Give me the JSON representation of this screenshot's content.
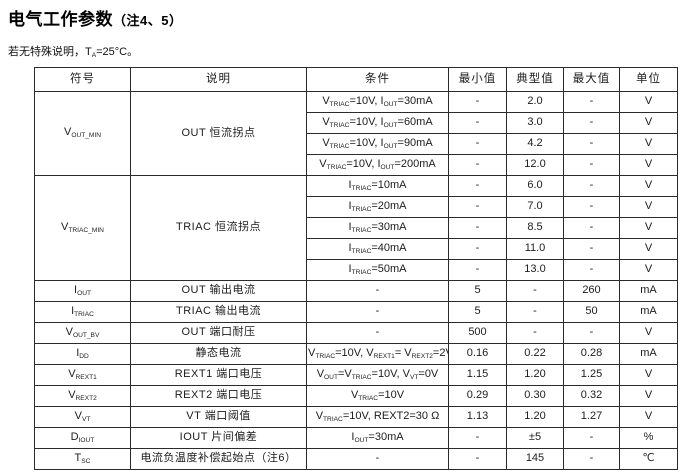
{
  "page": {
    "title_main": "电气工作参数",
    "title_note": "（注4、5）",
    "subtitle": "若无特殊说明，T~A~=25°C。"
  },
  "table": {
    "headers": [
      "符号",
      "说明",
      "条件",
      "最小值",
      "典型值",
      "最大值",
      "单位"
    ],
    "rows": [
      {
        "sym": "V~OUT_MIN~",
        "desc": "OUT 恒流拐点",
        "cond": "V~TRIAC~=10V, I~OUT~=30mA",
        "min": "-",
        "typ": "2.0",
        "max": "-",
        "unit": "V"
      },
      {
        "cond": "V~TRIAC~=10V, I~OUT~=60mA",
        "min": "-",
        "typ": "3.0",
        "max": "-",
        "unit": "V"
      },
      {
        "cond": "V~TRIAC~=10V, I~OUT~=90mA",
        "min": "-",
        "typ": "4.2",
        "max": "-",
        "unit": "V"
      },
      {
        "cond": "V~TRIAC~=10V, I~OUT~=200mA",
        "min": "-",
        "typ": "12.0",
        "max": "-",
        "unit": "V"
      },
      {
        "sym": "V~TRIAC_MIN~",
        "desc": "TRIAC 恒流拐点",
        "cond": "I~TRIAC~=10mA",
        "min": "-",
        "typ": "6.0",
        "max": "-",
        "unit": "V"
      },
      {
        "cond": "I~TRIAC~=20mA",
        "min": "-",
        "typ": "7.0",
        "max": "-",
        "unit": "V"
      },
      {
        "cond": "I~TRIAC~=30mA",
        "min": "-",
        "typ": "8.5",
        "max": "-",
        "unit": "V"
      },
      {
        "cond": "I~TRIAC~=40mA",
        "min": "-",
        "typ": "11.0",
        "max": "-",
        "unit": "V"
      },
      {
        "cond": "I~TRIAC~=50mA",
        "min": "-",
        "typ": "13.0",
        "max": "-",
        "unit": "V"
      },
      {
        "sym": "I~OUT~",
        "desc": "OUT 输出电流",
        "cond": "-",
        "min": "5",
        "typ": "-",
        "max": "260",
        "unit": "mA"
      },
      {
        "sym": "I~TRIAC~",
        "desc": "TRIAC 输出电流",
        "cond": "-",
        "min": "5",
        "typ": "-",
        "max": "50",
        "unit": "mA"
      },
      {
        "sym": "V~OUT_BV~",
        "desc": "OUT 端口耐压",
        "cond": "-",
        "min": "500",
        "typ": "-",
        "max": "-",
        "unit": "V"
      },
      {
        "sym": "I~DD~",
        "desc": "静态电流",
        "cond": "V~TRIAC~=10V, V~REXT1~= V~REXT2~=2V",
        "min": "0.16",
        "typ": "0.22",
        "max": "0.28",
        "unit": "mA"
      },
      {
        "sym": "V~REXT1~",
        "desc": "REXT1 端口电压",
        "cond": "V~OUT~=V~TRIAC~=10V, V~VT~=0V",
        "min": "1.15",
        "typ": "1.20",
        "max": "1.25",
        "unit": "V"
      },
      {
        "sym": "V~REXT2~",
        "desc": "REXT2 端口电压",
        "cond": "V~TRIAC~=10V",
        "min": "0.29",
        "typ": "0.30",
        "max": "0.32",
        "unit": "V"
      },
      {
        "sym": "V~VT~",
        "desc": "VT 端口阈值",
        "cond": "V~TRIAC~=10V, REXT2=30 Ω",
        "min": "1.13",
        "typ": "1.20",
        "max": "1.27",
        "unit": "V"
      },
      {
        "sym": "D~IOUT~",
        "desc": "IOUT 片间偏差",
        "cond": "I~OUT~=30mA",
        "min": "-",
        "typ": "±5",
        "max": "-",
        "unit": "%"
      },
      {
        "sym": "T~SC~",
        "desc": "电流负温度补偿起始点（注6）",
        "cond": "-",
        "min": "-",
        "typ": "145",
        "max": "-",
        "unit": "℃"
      }
    ]
  }
}
